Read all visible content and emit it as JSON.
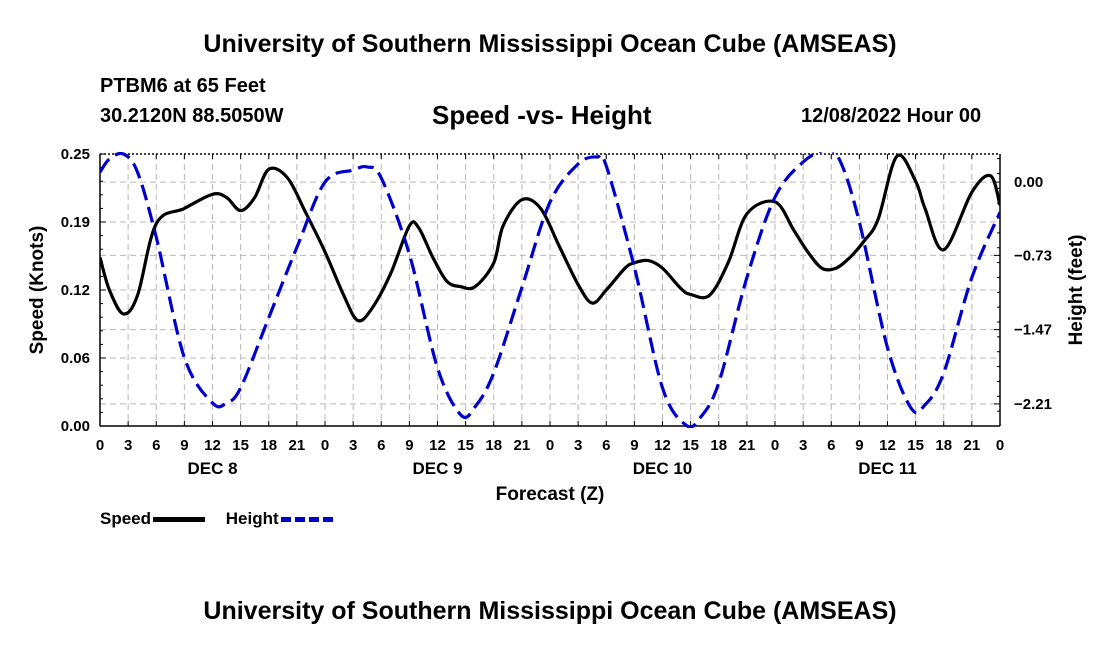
{
  "header": {
    "title": "University of Southern Mississippi Ocean Cube (AMSEAS)",
    "station": "PTBM6 at 65 Feet",
    "coordinates": "30.2120N  88.5050W",
    "subtitle": "Speed -vs- Height",
    "datetime": "12/08/2022 Hour 00"
  },
  "footer": {
    "title": "University of Southern Mississippi Ocean Cube (AMSEAS)"
  },
  "legend": {
    "speed_label": "Speed",
    "height_label": "Height"
  },
  "chart_data": {
    "type": "line",
    "title": "Speed -vs- Height",
    "xlabel": "Forecast (Z)",
    "ylabel": "Speed (Knots)",
    "y2label": "Height (feet)",
    "x_range_hours": [
      0,
      96
    ],
    "ylim": [
      0,
      0.25
    ],
    "y2lim": [
      -2.43,
      0.28
    ],
    "x_ticks": [
      {
        "hour": 0,
        "label": "0"
      },
      {
        "hour": 3,
        "label": "3"
      },
      {
        "hour": 6,
        "label": "6"
      },
      {
        "hour": 9,
        "label": "9"
      },
      {
        "hour": 12,
        "label": "12"
      },
      {
        "hour": 15,
        "label": "15"
      },
      {
        "hour": 18,
        "label": "18"
      },
      {
        "hour": 21,
        "label": "21"
      },
      {
        "hour": 24,
        "label": "0"
      },
      {
        "hour": 27,
        "label": "3"
      },
      {
        "hour": 30,
        "label": "6"
      },
      {
        "hour": 33,
        "label": "9"
      },
      {
        "hour": 36,
        "label": "12"
      },
      {
        "hour": 39,
        "label": "15"
      },
      {
        "hour": 42,
        "label": "18"
      },
      {
        "hour": 45,
        "label": "21"
      },
      {
        "hour": 48,
        "label": "0"
      },
      {
        "hour": 51,
        "label": "3"
      },
      {
        "hour": 54,
        "label": "6"
      },
      {
        "hour": 57,
        "label": "9"
      },
      {
        "hour": 60,
        "label": "12"
      },
      {
        "hour": 63,
        "label": "15"
      },
      {
        "hour": 66,
        "label": "18"
      },
      {
        "hour": 69,
        "label": "21"
      },
      {
        "hour": 72,
        "label": "0"
      },
      {
        "hour": 75,
        "label": "3"
      },
      {
        "hour": 78,
        "label": "6"
      },
      {
        "hour": 81,
        "label": "9"
      },
      {
        "hour": 84,
        "label": "12"
      },
      {
        "hour": 87,
        "label": "15"
      },
      {
        "hour": 90,
        "label": "18"
      },
      {
        "hour": 93,
        "label": "21"
      },
      {
        "hour": 96,
        "label": "0"
      }
    ],
    "day_labels": [
      {
        "hour": 12,
        "label": "DEC 8"
      },
      {
        "hour": 36,
        "label": "DEC 9"
      },
      {
        "hour": 60,
        "label": "DEC 10"
      },
      {
        "hour": 84,
        "label": "DEC 11"
      }
    ],
    "y_ticks": [
      {
        "value": 0.0,
        "label": "0.00"
      },
      {
        "value": 0.0625,
        "label": "0.06"
      },
      {
        "value": 0.125,
        "label": "0.12"
      },
      {
        "value": 0.1875,
        "label": "0.19"
      },
      {
        "value": 0.25,
        "label": "0.25"
      }
    ],
    "y2_ticks": [
      {
        "value": 0.0,
        "label": "0.00"
      },
      {
        "value": -0.73,
        "label": "−0.73"
      },
      {
        "value": -1.47,
        "label": "−1.47"
      },
      {
        "value": -2.21,
        "label": "−2.21"
      }
    ],
    "series": [
      {
        "name": "Speed",
        "axis": "left",
        "color": "#000000",
        "dash": "solid",
        "x": [
          0,
          1,
          2.5,
          4,
          6,
          9,
          12,
          13.5,
          15,
          16.5,
          18,
          20,
          22,
          24,
          26,
          27.5,
          29,
          31,
          33,
          34,
          35.5,
          37,
          38.5,
          40,
          42,
          43,
          45,
          47,
          49,
          51,
          52.5,
          54,
          56,
          57,
          58.5,
          60,
          62,
          63,
          65,
          67,
          69,
          72,
          74,
          75.5,
          77,
          78.5,
          80,
          81.5,
          83,
          85,
          87,
          88,
          90,
          93,
          95,
          96
        ],
        "values": [
          0.155,
          0.125,
          0.103,
          0.12,
          0.186,
          0.2,
          0.213,
          0.21,
          0.198,
          0.21,
          0.236,
          0.228,
          0.195,
          0.16,
          0.12,
          0.097,
          0.108,
          0.14,
          0.184,
          0.182,
          0.155,
          0.133,
          0.128,
          0.128,
          0.15,
          0.184,
          0.208,
          0.2,
          0.165,
          0.13,
          0.113,
          0.125,
          0.145,
          0.15,
          0.152,
          0.145,
          0.126,
          0.121,
          0.12,
          0.15,
          0.195,
          0.206,
          0.18,
          0.16,
          0.145,
          0.145,
          0.155,
          0.17,
          0.19,
          0.248,
          0.225,
          0.2,
          0.162,
          0.215,
          0.23,
          0.203
        ]
      },
      {
        "name": "Height",
        "axis": "right",
        "color": "#0000cc",
        "dash": "dashed",
        "x": [
          0,
          1,
          2.5,
          4,
          6,
          9,
          12,
          13.5,
          15,
          18,
          21,
          24,
          27,
          28.5,
          30,
          33,
          36,
          38.5,
          40,
          42,
          45,
          48,
          51,
          53,
          54,
          57,
          60,
          62.5,
          64,
          66,
          69,
          72,
          75,
          77.5,
          79,
          81,
          84,
          86.5,
          88,
          90,
          93,
          96
        ],
        "values": [
          0.1,
          0.23,
          0.28,
          0.1,
          -0.55,
          -1.75,
          -2.2,
          -2.2,
          -2.05,
          -1.35,
          -0.65,
          0.0,
          0.12,
          0.15,
          0.04,
          -0.72,
          -1.85,
          -2.32,
          -2.24,
          -1.9,
          -1.05,
          -0.2,
          0.18,
          0.25,
          0.16,
          -0.85,
          -2.05,
          -2.42,
          -2.35,
          -2.0,
          -0.95,
          -0.15,
          0.2,
          0.32,
          0.2,
          -0.4,
          -1.65,
          -2.25,
          -2.22,
          -1.9,
          -0.95,
          -0.3
        ]
      }
    ]
  }
}
